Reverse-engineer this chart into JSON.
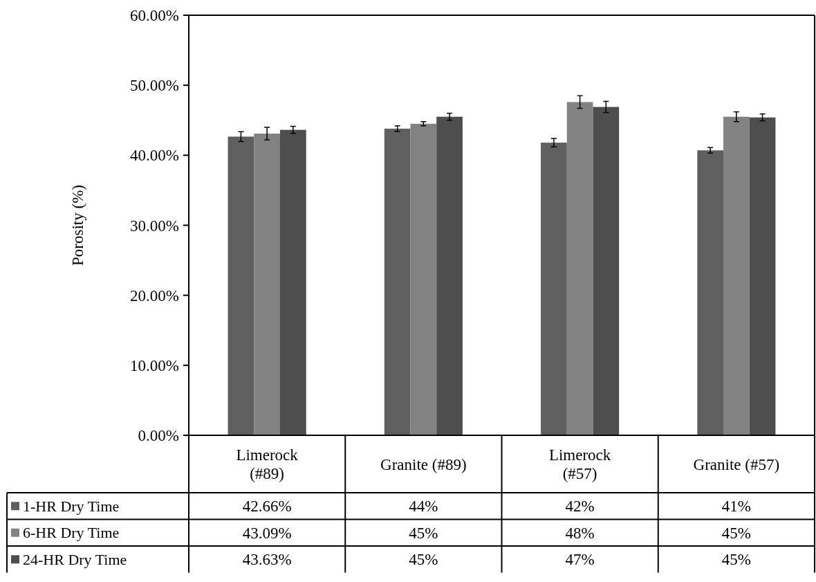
{
  "chart_data": {
    "type": "bar",
    "ylabel": "Porosity (%)",
    "categories": [
      "Limerock\n(#89)",
      "Granite (#89)",
      "Limerock\n(#57)",
      "Granite (#57)"
    ],
    "series": [
      {
        "name": "1-HR Dry Time",
        "color": "#5f5f5f",
        "values": [
          42.66,
          43.8,
          41.8,
          40.7
        ],
        "errors": [
          0.7,
          0.4,
          0.6,
          0.4
        ],
        "value_labels": [
          "42.66%",
          "44%",
          "42%",
          "41%"
        ]
      },
      {
        "name": "6-HR Dry Time",
        "color": "#828282",
        "values": [
          43.09,
          44.5,
          47.6,
          45.5
        ],
        "errors": [
          0.9,
          0.3,
          0.9,
          0.7
        ],
        "value_labels": [
          "43.09%",
          "45%",
          "48%",
          "45%"
        ]
      },
      {
        "name": "24-HR Dry Time",
        "color": "#4e4e4e",
        "values": [
          43.63,
          45.5,
          46.9,
          45.4
        ],
        "errors": [
          0.5,
          0.5,
          0.8,
          0.5
        ],
        "value_labels": [
          "43.63%",
          "45%",
          "47%",
          "45%"
        ]
      }
    ],
    "ylim": [
      0,
      60
    ],
    "yticks": [
      {
        "value": 0,
        "label": "0.00%"
      },
      {
        "value": 10,
        "label": "10.00%"
      },
      {
        "value": 20,
        "label": "20.00%"
      },
      {
        "value": 30,
        "label": "30.00%"
      },
      {
        "value": 40,
        "label": "40.00%"
      },
      {
        "value": 50,
        "label": "50.00%"
      },
      {
        "value": 60,
        "label": "60.00%"
      }
    ],
    "grid": false,
    "legend": "bottom"
  }
}
